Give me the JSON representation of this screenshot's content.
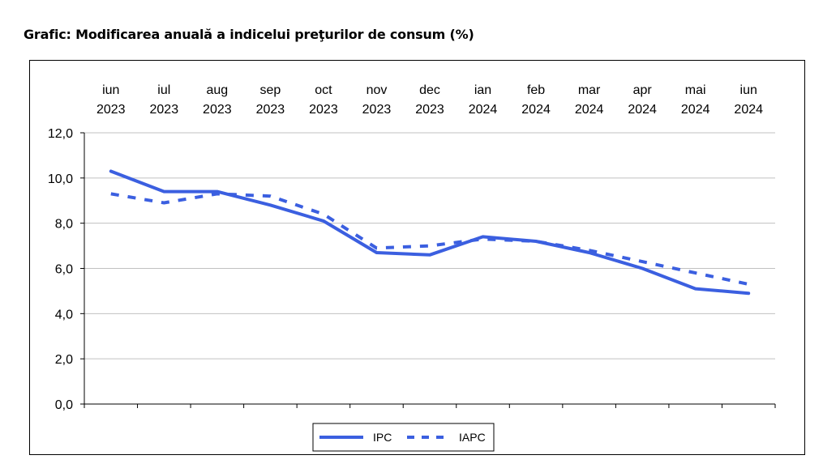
{
  "page_title": "Grafic: Modificarea anuală a indicelui preţurilor de consum (%)",
  "colors": {
    "series": "#3b5fe0",
    "grid": "#c0c0c0",
    "axis": "#000000"
  },
  "chart_data": {
    "type": "line",
    "title": "",
    "xlabel": "",
    "ylabel": "",
    "categories": [
      [
        "iun",
        "2023"
      ],
      [
        "iul",
        "2023"
      ],
      [
        "aug",
        "2023"
      ],
      [
        "sep",
        "2023"
      ],
      [
        "oct",
        "2023"
      ],
      [
        "nov",
        "2023"
      ],
      [
        "dec",
        "2023"
      ],
      [
        "ian",
        "2024"
      ],
      [
        "feb",
        "2024"
      ],
      [
        "mar",
        "2024"
      ],
      [
        "apr",
        "2024"
      ],
      [
        "mai",
        "2024"
      ],
      [
        "iun",
        "2024"
      ]
    ],
    "ylim": [
      0,
      12
    ],
    "yticks": [
      "0,0",
      "2,0",
      "4,0",
      "6,0",
      "8,0",
      "10,0",
      "12,0"
    ],
    "grid": true,
    "legend_position": "bottom-center",
    "series": [
      {
        "name": "IPC",
        "style": "solid",
        "values": [
          10.3,
          9.4,
          9.4,
          8.8,
          8.1,
          6.7,
          6.6,
          7.4,
          7.2,
          6.7,
          6.0,
          5.1,
          4.9
        ]
      },
      {
        "name": "IAPC",
        "style": "dashed",
        "values": [
          9.3,
          8.9,
          9.3,
          9.2,
          8.4,
          6.9,
          7.0,
          7.3,
          7.2,
          6.8,
          6.3,
          5.8,
          5.3
        ]
      }
    ]
  }
}
